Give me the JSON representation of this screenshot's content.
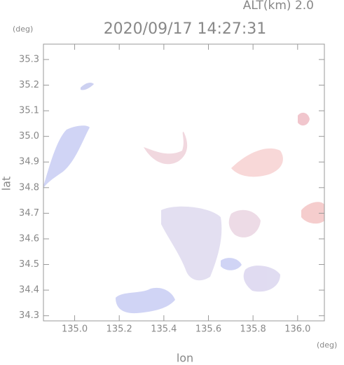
{
  "chart_data": {
    "type": "field",
    "title": "2020/09/17 14:27:31",
    "annotations": {
      "altitude": "ALT(km) 2.0",
      "y_unit": "(deg)",
      "x_unit": "(deg)"
    },
    "xlabel": "lon",
    "ylabel": "lat",
    "xlim": [
      134.86,
      136.12
    ],
    "ylim": [
      34.28,
      35.36
    ],
    "xticks": [
      {
        "value": 135,
        "label": "135.0"
      },
      135.2,
      135.4,
      135.6,
      135.8,
      {
        "value": 136,
        "label": "136.0"
      }
    ],
    "yticks": [
      34.3,
      34.4,
      34.5,
      34.6,
      34.7,
      34.8,
      34.9,
      {
        "value": 35,
        "label": "35.0"
      },
      35.1,
      35.2,
      35.3
    ]
  }
}
